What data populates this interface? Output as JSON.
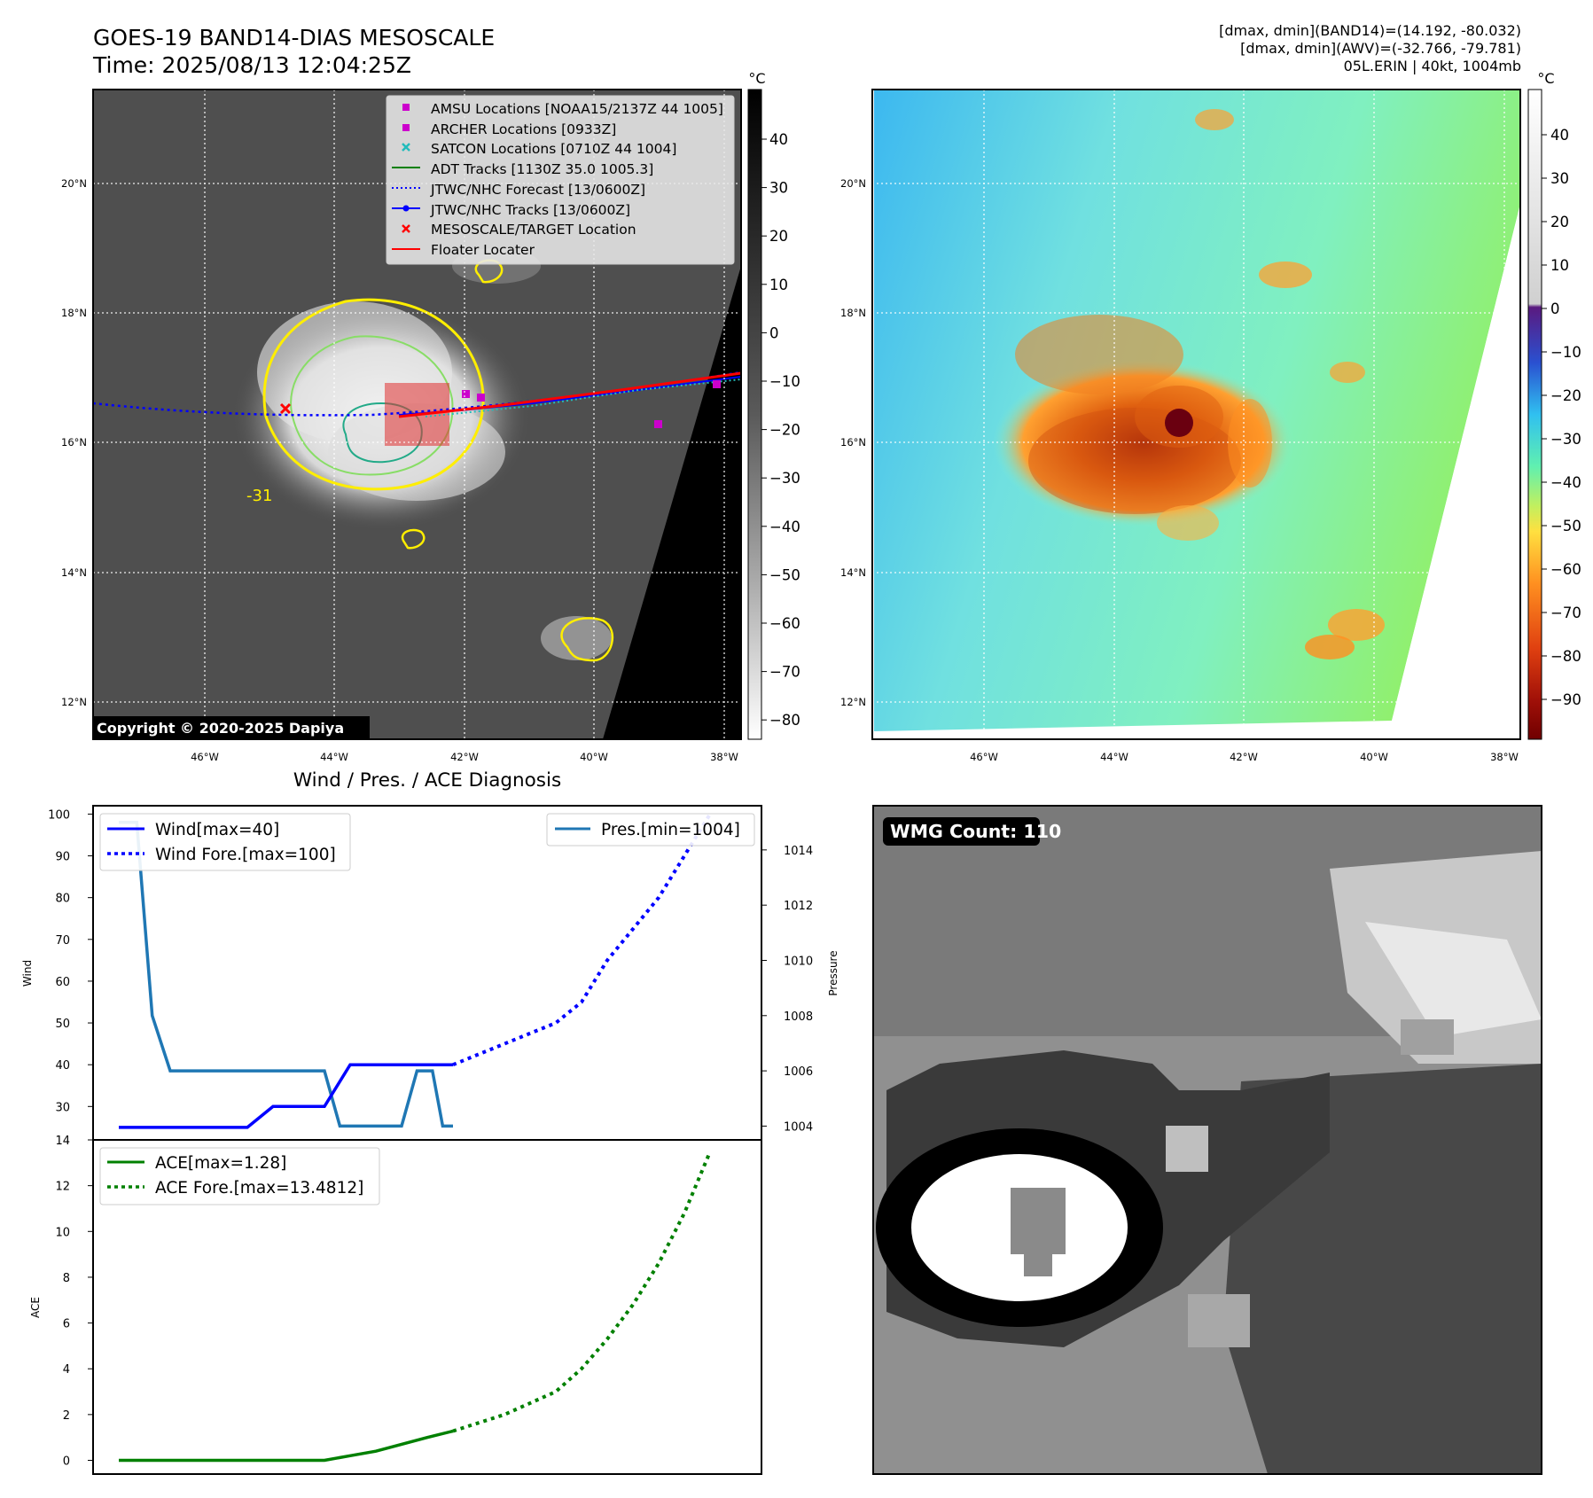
{
  "header": {
    "title": "GOES-19 BAND14-DIAS MESOSCALE",
    "time": "Time: 2025/08/13 12:04:25Z",
    "stats_band14": "[dmax, dmin](BAND14)=(14.192, -80.032)",
    "stats_awv": "[dmax, dmin](AWV)=(-32.766, -79.781)",
    "storm_info": "05L.ERIN | 40kt, 1004mb"
  },
  "maps": {
    "lat_labels": [
      "20°N",
      "18°N",
      "16°N",
      "14°N",
      "12°N"
    ],
    "lon_labels": [
      "46°W",
      "44°W",
      "42°W",
      "40°W",
      "38°W"
    ],
    "copyright": "Copyright © 2020-2025 Dapiya",
    "contour_label": "-31",
    "left_colorbar": {
      "unit": "°C",
      "ticks": [
        "40",
        "30",
        "20",
        "10",
        "0",
        "−10",
        "−20",
        "−30",
        "−40",
        "−50",
        "−60",
        "−70",
        "−80"
      ]
    },
    "right_colorbar": {
      "unit": "°C",
      "ticks": [
        "40",
        "30",
        "20",
        "10",
        "0",
        "−10",
        "−20",
        "−30",
        "−40",
        "−50",
        "−60",
        "−70",
        "−80",
        "−90"
      ]
    },
    "legend": [
      {
        "label": "AMSU Locations [NOAA15/2137Z 44 1005]",
        "marker": "square",
        "color": "#cc00cc"
      },
      {
        "label": "ARCHER Locations [0933Z]",
        "marker": "square",
        "color": "#cc00cc"
      },
      {
        "label": "SATCON Locations [0710Z 44 1004]",
        "marker": "x",
        "color": "#22bbbb"
      },
      {
        "label": "ADT Tracks [1130Z 35.0 1005.3]",
        "marker": "line",
        "color": "#008000"
      },
      {
        "label": "JTWC/NHC Forecast [13/0600Z]",
        "marker": "dotted",
        "color": "#0000ff"
      },
      {
        "label": "JTWC/NHC Tracks [13/0600Z]",
        "marker": "line-dot",
        "color": "#0000ff"
      },
      {
        "label": "MESOSCALE/TARGET Location",
        "marker": "x",
        "color": "#ff0000"
      },
      {
        "label": "Floater Locater",
        "marker": "line",
        "color": "#ff0000"
      }
    ]
  },
  "diagnosis": {
    "title": "Wind / Pres. / ACE Diagnosis",
    "wind_ylabel": "Wind",
    "pres_ylabel": "Pressure",
    "ace_ylabel": "ACE",
    "legend_wind": "Wind[max=40]",
    "legend_wind_fore": "Wind Fore.[max=100]",
    "legend_pres": "Pres.[min=1004]",
    "legend_ace": "ACE[max=1.28]",
    "legend_ace_fore": "ACE Fore.[max=13.4812]"
  },
  "wmg": {
    "label": "WMG Count: 110"
  },
  "chart_data": [
    {
      "type": "line",
      "title": "Wind / Pres. / ACE Diagnosis",
      "ylabel": "Wind",
      "y2label": "Pressure",
      "ylim": [
        22,
        102
      ],
      "y_ticks": [
        30,
        40,
        50,
        60,
        70,
        80,
        90,
        100
      ],
      "y2lim": [
        1003.5,
        1015.6
      ],
      "y2_ticks": [
        1004,
        1006,
        1008,
        1010,
        1012,
        1014
      ],
      "xlim": [
        0,
        26
      ],
      "series": [
        {
          "name": "Wind[max=40]",
          "color": "#0000ff",
          "style": "solid",
          "axis": "left",
          "x": [
            1,
            2,
            3,
            4,
            5,
            6,
            7,
            8,
            9,
            10,
            11,
            12,
            13,
            14
          ],
          "y": [
            25,
            25,
            25,
            25,
            25,
            25,
            30,
            30,
            30,
            40,
            40,
            40,
            40,
            40
          ]
        },
        {
          "name": "Wind Fore.[max=100]",
          "color": "#0000ff",
          "style": "dotted",
          "axis": "left",
          "x": [
            14,
            16,
            18,
            19,
            20,
            22,
            23,
            24
          ],
          "y": [
            40,
            45,
            50,
            55,
            65,
            80,
            90,
            100
          ]
        },
        {
          "name": "Pres.[min=1004]",
          "color": "#1f77b4",
          "style": "solid",
          "axis": "right",
          "x": [
            1,
            1.7,
            2.3,
            3,
            4,
            5,
            6,
            7,
            8,
            9,
            9.6,
            10.2,
            11,
            12,
            12.6,
            13.2,
            13.6,
            14
          ],
          "y": [
            1015,
            1015,
            1008,
            1006,
            1006,
            1006,
            1006,
            1006,
            1006,
            1006,
            1004,
            1004,
            1004,
            1004,
            1006,
            1006,
            1004,
            1004
          ]
        }
      ]
    },
    {
      "type": "line",
      "ylabel": "ACE",
      "ylim": [
        -0.6,
        14
      ],
      "y_ticks": [
        0,
        2,
        4,
        6,
        8,
        10,
        12,
        14
      ],
      "xlim": [
        0,
        26
      ],
      "series": [
        {
          "name": "ACE[max=1.28]",
          "color": "#008000",
          "style": "solid",
          "x": [
            1,
            2,
            3,
            4,
            5,
            6,
            7,
            8,
            9,
            10,
            11,
            12,
            13,
            14
          ],
          "y": [
            0,
            0,
            0,
            0,
            0,
            0,
            0,
            0,
            0,
            0.2,
            0.4,
            0.7,
            1.0,
            1.28
          ]
        },
        {
          "name": "ACE Fore.[max=13.4812]",
          "color": "#008000",
          "style": "dotted",
          "x": [
            14,
            16,
            18,
            19,
            20,
            21,
            22,
            23,
            24
          ],
          "y": [
            1.28,
            2.0,
            3.0,
            4.0,
            5.3,
            6.8,
            8.6,
            10.8,
            13.4812
          ]
        }
      ]
    }
  ]
}
